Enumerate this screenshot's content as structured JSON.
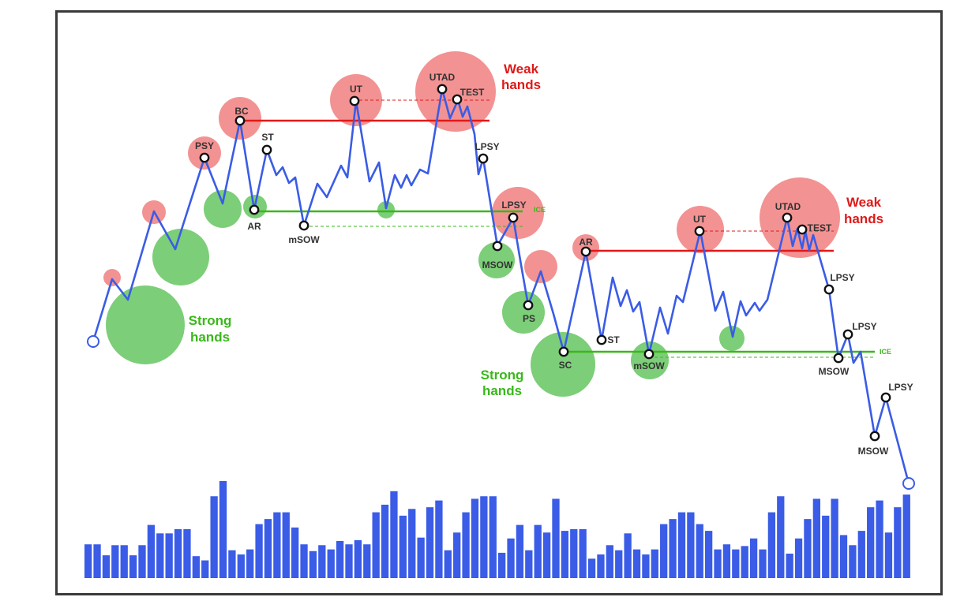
{
  "chart_data": {
    "type": "line",
    "title": "",
    "colors": {
      "price_line": "#3a5ce6",
      "volume_bar": "#3a5ce6",
      "weak_zone": "#f07a7a",
      "strong_zone": "#5fc35a",
      "resistance_line": "#e01919",
      "support_line": "#39b81a",
      "weak_text": "#e01919",
      "strong_text": "#39b81a"
    },
    "ice_label": "ICE",
    "hands_annotations": [
      {
        "id": "strong1",
        "lines": [
          "Strong",
          "hands"
        ],
        "kind": "strong"
      },
      {
        "id": "weak1",
        "lines": [
          "Weak",
          "hands"
        ],
        "kind": "weak"
      },
      {
        "id": "strong2",
        "lines": [
          "Strong",
          "hands"
        ],
        "kind": "strong"
      },
      {
        "id": "weak2",
        "lines": [
          "Weak",
          "hands"
        ],
        "kind": "weak"
      }
    ],
    "event_labels": [
      "PSY",
      "BC",
      "ST",
      "AR",
      "mSOW",
      "UT",
      "UTAD",
      "TEST",
      "LPSY",
      "LPSY",
      "MSOW",
      "PS",
      "SC",
      "AR",
      "ST",
      "mSOW",
      "UT",
      "UTAD",
      "TEST",
      "LPSY",
      "LPSY",
      "MSOW",
      "LPSY",
      "MSOW"
    ],
    "volume": [
      4.0,
      4.0,
      2.7,
      3.9,
      3.9,
      2.7,
      3.9,
      6.3,
      5.3,
      5.3,
      5.8,
      5.8,
      2.6,
      2.1,
      9.7,
      11.5,
      3.3,
      2.8,
      3.4,
      6.4,
      7.0,
      7.8,
      7.8,
      6.0,
      4.0,
      3.2,
      3.9,
      3.4,
      4.4,
      4.0,
      4.5,
      4.0,
      7.8,
      8.7,
      10.3,
      7.4,
      8.2,
      4.8,
      8.4,
      9.2,
      3.3,
      5.4,
      7.8,
      9.4,
      9.7,
      9.7,
      3.0,
      4.7,
      6.3,
      3.3,
      6.3,
      5.4,
      9.4,
      5.6,
      5.8,
      5.8,
      2.3,
      2.8,
      3.9,
      3.3,
      5.3,
      3.4,
      2.8,
      3.4,
      6.4,
      7.0,
      7.8,
      7.8,
      6.4,
      5.6,
      3.4,
      4.0,
      3.4,
      3.8,
      4.7,
      3.4,
      7.8,
      9.7,
      2.9,
      4.7,
      7.0,
      9.4,
      7.4,
      9.4,
      5.1,
      3.9,
      5.6,
      8.4,
      9.2,
      5.4,
      8.4,
      9.9
    ]
  }
}
